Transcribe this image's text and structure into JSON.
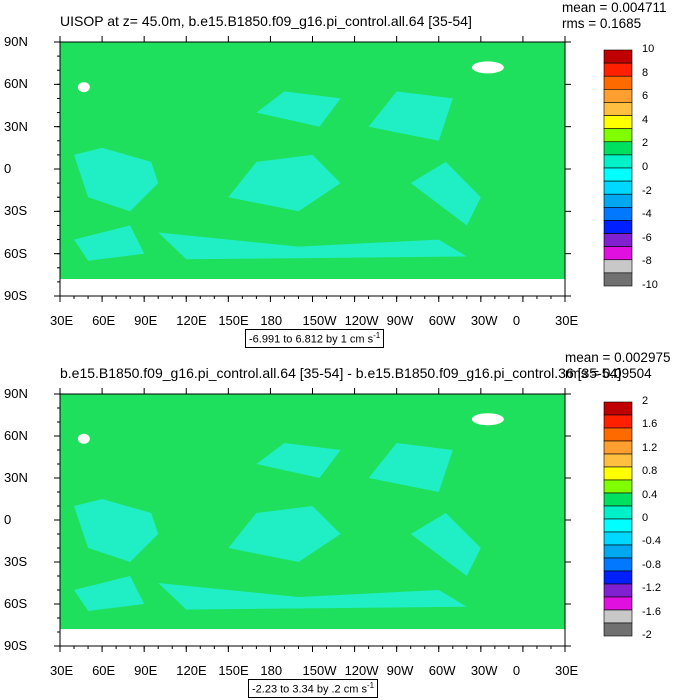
{
  "chart_data": [
    {
      "type": "heatmap",
      "title": "UISOP at z=  45.0m, b.e15.B1850.f09_g16.pi_control.all.64 [35-54]",
      "stats": {
        "mean": "mean = 0.004711",
        "rms": "rms = 0.1685"
      },
      "xticks": [
        "30E",
        "60E",
        "90E",
        "120E",
        "150E",
        "180",
        "150W",
        "120W",
        "90W",
        "60W",
        "30W",
        "0",
        "30E"
      ],
      "yticks": [
        "90N",
        "60N",
        "30N",
        "0",
        "30S",
        "60S",
        "90S"
      ],
      "xlim": [
        30,
        390
      ],
      "ylim": [
        -90,
        90
      ],
      "range_label": "-6.991 to 6.812 by 1 cm s",
      "range_exp": "-1",
      "colorbar": {
        "labels": [
          "10",
          "8",
          "6",
          "4",
          "2",
          "0",
          "-2",
          "-4",
          "-6",
          "-8",
          "-10"
        ],
        "colors": [
          "#c00000",
          "#ff2000",
          "#ff6a00",
          "#ff9f30",
          "#ffbf40",
          "#ffff00",
          "#80ff00",
          "#00e060",
          "#00f0c8",
          "#00ffff",
          "#00d8ff",
          "#00a8f0",
          "#0078ff",
          "#0020ff",
          "#8020d0",
          "#e010e0",
          "#c8c8c8",
          "#707070"
        ],
        "unit": "cm s-1"
      },
      "field_colors": {
        "land_ocean_bg": "#1fe05c",
        "negative": "#20f0d0",
        "ice_mask": "#ffffff"
      }
    },
    {
      "type": "heatmap",
      "title": "b.e15.B1850.f09_g16.pi_control.all.64 [35-54] - b.e15.B1850.f09_g16.pi_control.36 [35-54]",
      "stats": {
        "mean": "mean = 0.002975",
        "rms": "rms = 0.09504"
      },
      "xticks": [
        "30E",
        "60E",
        "90E",
        "120E",
        "150E",
        "180",
        "150W",
        "120W",
        "90W",
        "60W",
        "30W",
        "0",
        "30E"
      ],
      "yticks": [
        "90N",
        "60N",
        "30N",
        "0",
        "30S",
        "60S",
        "90S"
      ],
      "xlim": [
        30,
        390
      ],
      "ylim": [
        -90,
        90
      ],
      "range_label": "-2.23 to 3.34 by .2 cm s",
      "range_exp": "-1",
      "colorbar": {
        "labels": [
          "2",
          "1.6",
          "1.2",
          "0.8",
          "0.4",
          "0",
          "-0.4",
          "-0.8",
          "-1.2",
          "-1.6",
          "-2"
        ],
        "colors": [
          "#c00000",
          "#ff2000",
          "#ff6a00",
          "#ff9f30",
          "#ffbf40",
          "#ffff00",
          "#80ff00",
          "#00e060",
          "#00f0c8",
          "#00ffff",
          "#00d8ff",
          "#00a8f0",
          "#0078ff",
          "#0020ff",
          "#8020d0",
          "#e010e0",
          "#c8c8c8",
          "#707070"
        ],
        "unit": "cm s-1"
      },
      "field_colors": {
        "land_ocean_bg": "#1fe05c",
        "negative": "#20f0d0",
        "ice_mask": "#ffffff"
      }
    }
  ]
}
